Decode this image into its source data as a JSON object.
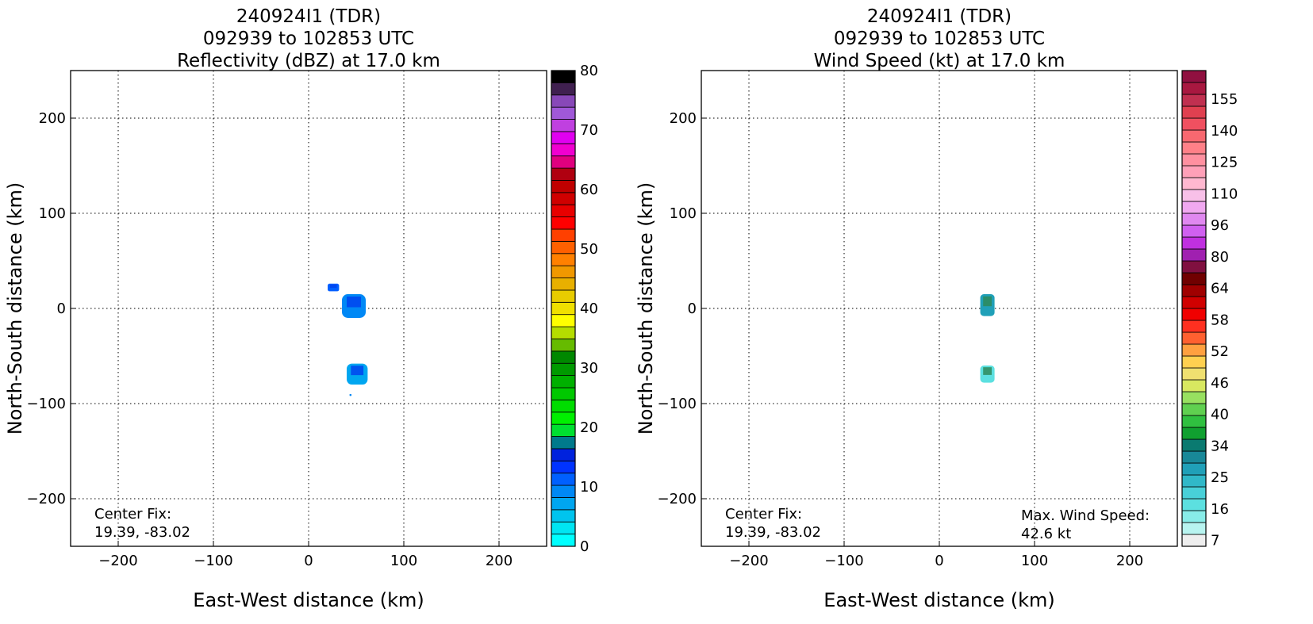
{
  "left_panel": {
    "title_line1": "240924I1 (TDR)",
    "title_line2": "092939 to 102853 UTC",
    "title_line3": "Reflectivity (dBZ) at 17.0 km",
    "xlabel": "East-West distance (km)",
    "ylabel": "North-South distance (km)",
    "center_fix_label": "Center Fix:",
    "center_fix_value": "19.39, -83.02"
  },
  "right_panel": {
    "title_line1": "240924I1 (TDR)",
    "title_line2": "092939 to 102853 UTC",
    "title_line3": "Wind Speed (kt) at 17.0 km",
    "xlabel": "East-West distance (km)",
    "ylabel": "North-South distance (km)",
    "center_fix_label": "Center Fix:",
    "center_fix_value": "19.39, -83.02",
    "max_wind_label": "Max. Wind Speed:",
    "max_wind_value": "42.6 kt"
  },
  "chart_data": [
    {
      "type": "heatmap",
      "title": "240924I1 (TDR) 092939 to 102853 UTC Reflectivity (dBZ) at 17.0 km",
      "xlabel": "East-West distance (km)",
      "ylabel": "North-South distance (km)",
      "xlim": [
        -250,
        250
      ],
      "ylim": [
        -250,
        250
      ],
      "xticks": [
        -200,
        -100,
        0,
        100,
        200
      ],
      "yticks": [
        -200,
        -100,
        0,
        100,
        200
      ],
      "grid": true,
      "colorbar": {
        "label": "Reflectivity (dBZ)",
        "min": 0,
        "max": 80,
        "tick_labels": [
          "0",
          "10",
          "20",
          "30",
          "40",
          "50",
          "60",
          "70",
          "80"
        ],
        "colors": [
          "#00ffff",
          "#00e5f2",
          "#00c4ee",
          "#00a6f0",
          "#0088f5",
          "#0060ff",
          "#0033ff",
          "#0022dd",
          "#007a8c",
          "#00e030",
          "#00f000",
          "#00dd00",
          "#00c800",
          "#00b000",
          "#009a00",
          "#008800",
          "#66bb00",
          "#b5dd00",
          "#ffff00",
          "#f0e000",
          "#e8cc00",
          "#e8b000",
          "#f09800",
          "#ff8000",
          "#ff6000",
          "#ff4000",
          "#ff0000",
          "#e80000",
          "#d00000",
          "#c00000",
          "#b00010",
          "#e0007f",
          "#f000d0",
          "#e000f0",
          "#c040e0",
          "#a058d8",
          "#8848b8",
          "#402050",
          "#000000"
        ]
      },
      "regions": [
        {
          "x": [
            20,
            32
          ],
          "y": [
            18,
            26
          ],
          "dbz": 10
        },
        {
          "x": [
            35,
            60
          ],
          "y": [
            -10,
            15
          ],
          "dbz": 8
        },
        {
          "x": [
            40,
            62
          ],
          "y": [
            -80,
            -58
          ],
          "dbz": 6
        },
        {
          "x": [
            43,
            45
          ],
          "y": [
            -92,
            -90
          ],
          "dbz": 8
        }
      ]
    },
    {
      "type": "heatmap",
      "title": "240924I1 (TDR) 092939 to 102853 UTC Wind Speed (kt) at 17.0 km",
      "xlabel": "East-West distance (km)",
      "ylabel": "North-South distance (km)",
      "xlim": [
        -250,
        250
      ],
      "ylim": [
        -250,
        250
      ],
      "xticks": [
        -200,
        -100,
        0,
        100,
        200
      ],
      "yticks": [
        -200,
        -100,
        0,
        100,
        200
      ],
      "grid": true,
      "max_wind_speed_kt": 42.6,
      "colorbar": {
        "label": "Wind Speed (kt)",
        "tick_labels": [
          "7",
          "16",
          "25",
          "34",
          "40",
          "46",
          "52",
          "58",
          "64",
          "80",
          "96",
          "110",
          "125",
          "140",
          "155"
        ],
        "colors": [
          "#eeeeee",
          "#b8f4f0",
          "#88ece8",
          "#5ce0e0",
          "#48d0d8",
          "#30b8c8",
          "#20a0b8",
          "#188898",
          "#0a7a70",
          "#10a030",
          "#30c040",
          "#60d050",
          "#98e060",
          "#d8e860",
          "#f0e070",
          "#ffd050",
          "#ffa040",
          "#ff6030",
          "#ff3020",
          "#f00000",
          "#d00000",
          "#a00000",
          "#700000",
          "#801040",
          "#a020b0",
          "#c030e0",
          "#d060f0",
          "#e088f0",
          "#f0a8f0",
          "#f8c0e8",
          "#ffb8d0",
          "#ffa0b8",
          "#ff90a0",
          "#ff8088",
          "#f86870",
          "#f05060",
          "#e04050",
          "#c03050",
          "#a81840",
          "#901040"
        ]
      },
      "regions": [
        {
          "x": [
            43,
            58
          ],
          "y": [
            -8,
            15
          ],
          "kt": 30
        },
        {
          "x": [
            43,
            58
          ],
          "y": [
            -78,
            -60
          ],
          "kt": 15
        }
      ]
    }
  ]
}
